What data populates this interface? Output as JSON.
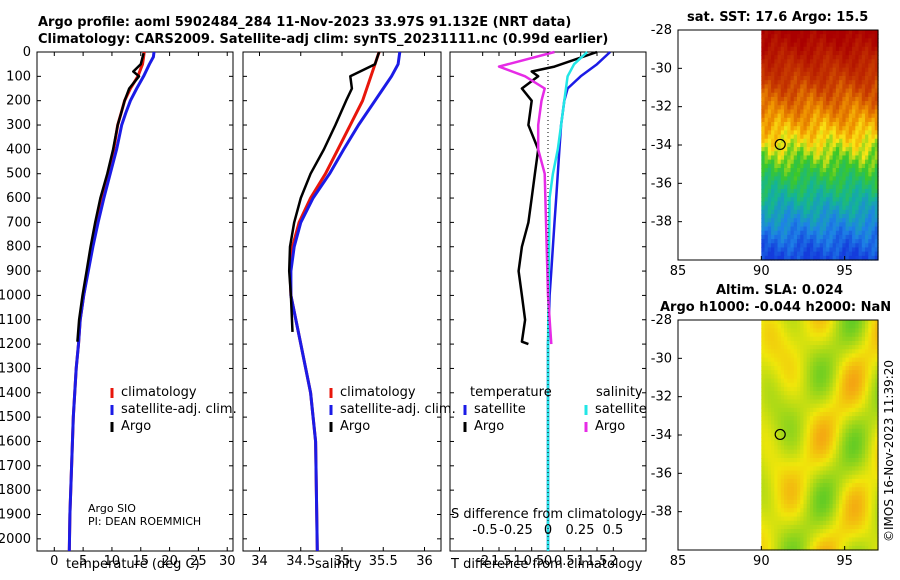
{
  "header": {
    "title_line1": "Argo profile: aoml 5902484_284 11-Nov-2023 33.97S 91.132E (NRT data)",
    "title_line2": "Climatology: CARS2009. Satellite-adj clim: synTS_20231111.nc (0.99d earlier)"
  },
  "credits": {
    "line1": "Argo SIO",
    "line2": "PI: DEAN ROEMMICH"
  },
  "stamp": "©IMOS 16-Nov-2023 11:39:20",
  "colors": {
    "argo": "#000000",
    "climatology": "#e8160b",
    "satellite": "#1b1be6",
    "sal_satellite": "#22e6e6",
    "sal_argo": "#e62be6"
  },
  "chart_data": [
    {
      "type": "line",
      "xlabel": "temperature (deg C)",
      "xlim": [
        -3,
        31
      ],
      "xticks": [
        "0",
        "5",
        "10",
        "15",
        "20",
        "25",
        "30"
      ],
      "ylim": [
        0,
        2050
      ],
      "yticks": [
        "0",
        "100",
        "200",
        "300",
        "400",
        "500",
        "600",
        "700",
        "800",
        "900",
        "1000",
        "1100",
        "1200",
        "1300",
        "1400",
        "1500",
        "1600",
        "1700",
        "1800",
        "1900",
        "2000"
      ],
      "legend": {
        "position": "right",
        "items": [
          "climatology",
          "satellite-adj. clim.",
          "Argo"
        ]
      },
      "series": [
        {
          "name": "climatology",
          "x": [
            15.6,
            15.5,
            15.3,
            14.5,
            13.2,
            12.2,
            11.6,
            11.0,
            10.3,
            9.4,
            8.3,
            7.4,
            6.5,
            5.8,
            5.1,
            4.5,
            4.2,
            3.8,
            3.3,
            3.0,
            2.7,
            2.6
          ],
          "y": [
            0,
            20,
            50,
            100,
            150,
            200,
            250,
            300,
            400,
            500,
            600,
            700,
            800,
            900,
            1000,
            1100,
            1200,
            1300,
            1500,
            1700,
            1900,
            2050
          ]
        },
        {
          "name": "satellite-adj. clim.",
          "x": [
            17.3,
            17.2,
            16.5,
            15.5,
            14.3,
            13.2,
            12.4,
            11.7,
            10.8,
            9.7,
            8.6,
            7.6,
            6.7,
            5.9,
            5.1,
            4.5,
            4.2,
            3.8,
            3.3,
            3.0,
            2.7,
            2.6
          ],
          "y": [
            0,
            20,
            50,
            100,
            150,
            200,
            250,
            300,
            400,
            500,
            600,
            700,
            800,
            900,
            1000,
            1100,
            1200,
            1300,
            1500,
            1700,
            1900,
            2050
          ]
        },
        {
          "name": "Argo",
          "x": [
            15.5,
            15.0,
            13.7,
            14.7,
            13.0,
            12.2,
            11.6,
            11.0,
            10.2,
            9.2,
            8.0,
            7.1,
            6.3,
            5.6,
            4.9,
            4.3,
            4.0
          ],
          "y": [
            5,
            50,
            80,
            100,
            150,
            200,
            250,
            300,
            400,
            500,
            600,
            700,
            800,
            900,
            1000,
            1100,
            1190
          ]
        }
      ]
    },
    {
      "type": "line",
      "xlabel": "salinity",
      "xlim": [
        33.8,
        36.2
      ],
      "xticks": [
        "34",
        "34.5",
        "35",
        "35.5",
        "36"
      ],
      "ylim": [
        0,
        2050
      ],
      "legend": {
        "position": "right",
        "items": [
          "climatology",
          "satellite-adj. clim.",
          "Argo"
        ]
      },
      "series": [
        {
          "name": "climatology",
          "x": [
            35.45,
            35.4,
            35.35,
            35.25,
            35.1,
            34.95,
            34.8,
            34.62,
            34.48,
            34.4,
            34.37,
            34.38,
            34.5,
            34.62,
            34.68,
            34.7
          ],
          "y": [
            0,
            50,
            100,
            200,
            300,
            400,
            500,
            600,
            700,
            800,
            900,
            1000,
            1200,
            1400,
            1600,
            2050
          ]
        },
        {
          "name": "satellite-adj. clim.",
          "x": [
            35.7,
            35.68,
            35.6,
            35.4,
            35.2,
            35.02,
            34.85,
            34.65,
            34.5,
            34.42,
            34.38,
            34.38,
            34.5,
            34.62,
            34.68,
            34.7
          ],
          "y": [
            0,
            50,
            100,
            200,
            300,
            400,
            500,
            600,
            700,
            800,
            900,
            1000,
            1200,
            1400,
            1600,
            2050
          ]
        },
        {
          "name": "Argo",
          "x": [
            35.45,
            35.4,
            35.1,
            35.12,
            35.05,
            34.92,
            34.78,
            34.62,
            34.5,
            34.42,
            34.37,
            34.36,
            34.38,
            34.4
          ],
          "y": [
            0,
            50,
            100,
            150,
            200,
            300,
            400,
            500,
            600,
            700,
            800,
            900,
            1000,
            1150
          ]
        }
      ]
    },
    {
      "type": "line",
      "xlabel": "T difference from climatology",
      "xlabel_top": "S difference from climatology",
      "xlim": [
        -3,
        3
      ],
      "xticks": [
        "-2",
        "-1.5",
        "-1",
        "-0.5",
        "0",
        "0.5",
        "1",
        "1.5",
        "2"
      ],
      "xticks_top": [
        "-0.5",
        "-0.25",
        "0",
        "0.25",
        "0.5"
      ],
      "ylim": [
        0,
        2050
      ],
      "legend": {
        "position": "right",
        "items": [
          "temperature",
          "satellite",
          "Argo",
          "salinity",
          "satellite",
          "Argo"
        ]
      },
      "series": [
        {
          "name": "temperature satellite",
          "x": [
            1.9,
            1.5,
            1.0,
            0.6,
            0.5,
            0.4,
            0.35,
            0.3,
            0.25,
            0.2,
            0.15,
            0.1,
            0.05,
            0.0,
            0.0
          ],
          "y": [
            0,
            50,
            100,
            150,
            200,
            300,
            400,
            500,
            600,
            700,
            800,
            900,
            1000,
            1200,
            2050
          ]
        },
        {
          "name": "temperature Argo",
          "x": [
            1.5,
            0.2,
            -0.5,
            -0.3,
            -0.8,
            -0.5,
            -0.6,
            -0.3,
            -0.4,
            -0.5,
            -0.6,
            -0.8,
            -0.9,
            -0.8,
            -0.7,
            -0.8,
            -0.6
          ],
          "y": [
            0,
            60,
            80,
            100,
            150,
            200,
            300,
            400,
            500,
            600,
            700,
            800,
            900,
            1000,
            1100,
            1190,
            1200
          ]
        },
        {
          "name": "salinity satellite",
          "x": [
            1.2,
            0.8,
            0.6,
            0.5,
            0.4,
            0.3,
            0.15,
            0.05,
            0.0,
            0.0
          ],
          "y": [
            0,
            50,
            100,
            200,
            300,
            400,
            500,
            600,
            1200,
            2050
          ]
        },
        {
          "name": "salinity Argo",
          "x": [
            0.2,
            -1.5,
            -0.7,
            -0.1,
            -0.2,
            -0.3,
            -0.3,
            -0.1,
            0.0,
            0.1
          ],
          "y": [
            0,
            60,
            100,
            150,
            200,
            300,
            400,
            500,
            1000,
            1200
          ]
        }
      ]
    },
    {
      "type": "heatmap",
      "title": "sat. SST: 17.6 Argo: 15.5",
      "xlim": [
        85,
        97
      ],
      "xticks": [
        "85",
        "90",
        "95"
      ],
      "ylim": [
        -40,
        -28
      ],
      "yticks": [
        "-28",
        "-30",
        "-32",
        "-34",
        "-36",
        "-38"
      ],
      "marker": {
        "lon": 91.132,
        "lat": -33.97
      }
    },
    {
      "type": "heatmap",
      "title_line1": "Altim. SLA: 0.024",
      "title_line2": "Argo h1000: -0.044 h2000: NaN",
      "xlim": [
        85,
        97
      ],
      "xticks": [
        "85",
        "90",
        "95"
      ],
      "ylim": [
        -40,
        -28
      ],
      "yticks": [
        "-28",
        "-30",
        "-32",
        "-34",
        "-36",
        "-38"
      ],
      "marker": {
        "lon": 91.132,
        "lat": -33.97
      }
    }
  ]
}
